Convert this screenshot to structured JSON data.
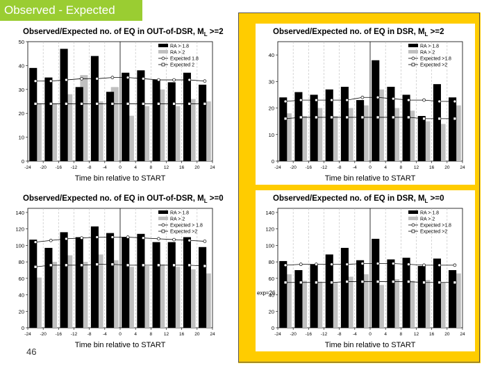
{
  "slide": {
    "title": "Observed - Expected",
    "number": "46"
  },
  "colors": {
    "accent_green": "#9acd32",
    "panel_yellow": "#ffcc00",
    "bar_black": "#000000",
    "bar_gray": "#c0c0c0"
  },
  "chart_data": [
    {
      "id": "out_ml2",
      "type": "bar",
      "title": "Observed/Expected no. of EQ in OUT-of-DSR, M",
      "title_sub": "L",
      "title_tail": " >=2",
      "xlabel": "Time bin relative to START",
      "ylim": [
        0,
        50
      ],
      "yticks": [
        0,
        10,
        20,
        30,
        40,
        50
      ],
      "xticks": [
        "-24",
        "-20",
        "-16",
        "-12",
        "-8",
        "-4",
        "0",
        "4",
        "8",
        "12",
        "16",
        "20",
        "24"
      ],
      "legend": [
        "RA > 1.8",
        "RA > 2",
        "Expected 1.8",
        "Expected 2"
      ],
      "series": [
        {
          "name": "RA > 1.8",
          "values": [
            39,
            35,
            47,
            31,
            44,
            29,
            37,
            38,
            34,
            33,
            37,
            32
          ]
        },
        {
          "name": "RA > 2",
          "values": [
            24,
            24,
            28,
            36,
            25,
            31,
            19,
            23,
            30,
            23,
            26,
            25
          ]
        },
        {
          "name": "Expected 1.8",
          "values": [
            33.5,
            33.5,
            34,
            34.5,
            34.5,
            35,
            35,
            34.5,
            34,
            34,
            34,
            33.5
          ]
        },
        {
          "name": "Expected 2",
          "values": [
            24,
            24,
            24,
            24,
            24,
            24,
            24,
            24,
            24,
            24,
            24,
            24
          ]
        }
      ]
    },
    {
      "id": "in_ml2",
      "type": "bar",
      "title": "Observed/Expected no. of EQ in DSR, M",
      "title_sub": "L",
      "title_tail": " >=2",
      "xlabel": "Time bin relative to START",
      "ylim": [
        0,
        45
      ],
      "yticks": [
        0,
        10,
        20,
        30,
        40
      ],
      "xticks": [
        "-24",
        "-20",
        "-16",
        "-12",
        "-8",
        "-4",
        "0",
        "4",
        "8",
        "12",
        "16",
        "20",
        "24"
      ],
      "legend": [
        "RA > 1.8",
        "RA > 2",
        "Expected >1.8",
        "Expected >2"
      ],
      "series": [
        {
          "name": "RA > 1.8",
          "values": [
            24,
            26,
            25,
            27,
            28,
            23,
            38,
            28,
            25,
            17,
            29,
            24
          ]
        },
        {
          "name": "RA > 2",
          "values": [
            18,
            17,
            20,
            17,
            20,
            21,
            27,
            20,
            19,
            15,
            14,
            21
          ]
        },
        {
          "name": "Expected >1.8",
          "values": [
            22.5,
            23,
            23,
            23,
            23,
            24,
            24,
            23.5,
            23,
            23,
            22.5,
            22.5
          ]
        },
        {
          "name": "Expected >2",
          "values": [
            16,
            16.5,
            16.5,
            16.5,
            16.5,
            16.5,
            16.5,
            16.5,
            16.5,
            16,
            16,
            16
          ]
        }
      ]
    },
    {
      "id": "out_ml0",
      "type": "bar",
      "title": "Observed/Expected no. of EQ in OUT-of-DSR, M",
      "title_sub": "L",
      "title_tail": " >=0",
      "xlabel": "Time bin relative to START",
      "ylim": [
        0,
        145
      ],
      "yticks": [
        0,
        20,
        40,
        60,
        80,
        100,
        120,
        140
      ],
      "xticks": [
        "-24",
        "-20",
        "-16",
        "-12",
        "-8",
        "-4",
        "0",
        "4",
        "8",
        "12",
        "16",
        "20",
        "24"
      ],
      "legend": [
        "RA > 1.8",
        "RA > 2",
        "Expected > 1.8",
        "Expected >2"
      ],
      "series": [
        {
          "name": "RA > 1.8",
          "values": [
            107,
            97,
            116,
            110,
            123,
            115,
            110,
            114,
            104,
            104,
            110,
            98
          ]
        },
        {
          "name": "RA > 2",
          "values": [
            61,
            80,
            88,
            80,
            89,
            82,
            74,
            75,
            77,
            74,
            71,
            66
          ]
        },
        {
          "name": "Expected > 1.8",
          "values": [
            104,
            106,
            108,
            109,
            110,
            110,
            110,
            109,
            108,
            107,
            106,
            105
          ]
        },
        {
          "name": "Expected >2",
          "values": [
            74,
            76,
            76,
            76,
            77,
            77,
            76,
            76,
            76,
            76,
            76,
            75
          ]
        }
      ]
    },
    {
      "id": "in_ml0",
      "type": "bar",
      "title": "Observed/Expected no. of EQ in DSR, M",
      "title_sub": "L",
      "title_tail": " >=0",
      "xlabel": "Time bin relative to START",
      "ylim": [
        0,
        145
      ],
      "yticks": [
        0,
        20,
        40,
        60,
        80,
        100,
        120,
        140
      ],
      "xticks": [
        "-24",
        "-20",
        "-16",
        "-12",
        "-8",
        "-4",
        "0",
        "4",
        "8",
        "12",
        "16",
        "20",
        "24"
      ],
      "legend": [
        "RA > 1.8",
        "RA > 2",
        "Expected >1.8",
        "Expected >2"
      ],
      "annotation": "exp=26",
      "series": [
        {
          "name": "RA > 1.8",
          "values": [
            81,
            70,
            77,
            89,
            97,
            82,
            108,
            83,
            85,
            75,
            84,
            70
          ]
        },
        {
          "name": "RA > 2",
          "values": [
            65,
            57,
            56,
            55,
            62,
            65,
            52,
            59,
            57,
            58,
            55,
            66
          ]
        },
        {
          "name": "Expected >1.8",
          "values": [
            76,
            77,
            77,
            77,
            77,
            78,
            78,
            78,
            77,
            76,
            76,
            76
          ]
        },
        {
          "name": "Expected >2",
          "values": [
            55,
            55,
            55,
            55,
            56,
            56,
            56,
            56,
            56,
            55,
            55,
            55
          ]
        }
      ]
    }
  ]
}
